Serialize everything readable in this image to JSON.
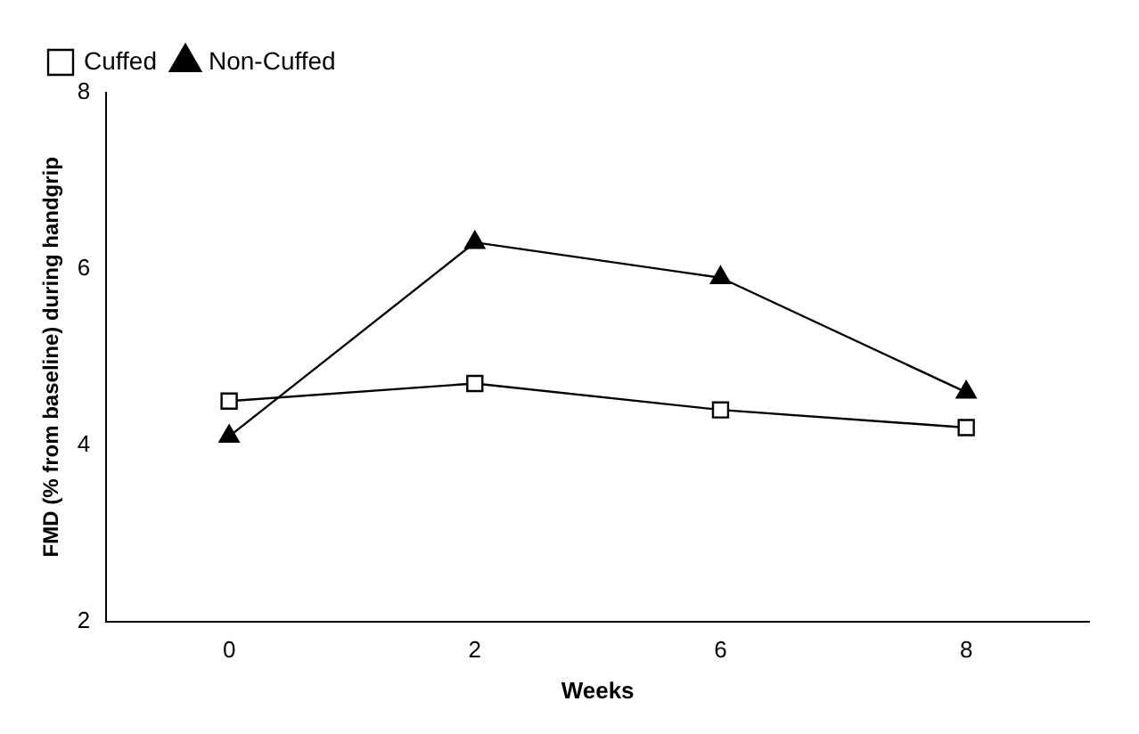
{
  "chart_data": {
    "type": "line",
    "xlabel": "Weeks",
    "ylabel": "FMD (% from baseline) during handgrip",
    "categories": [
      "0",
      "2",
      "6",
      "8"
    ],
    "series": [
      {
        "name": "Cuffed",
        "color": "#000000",
        "marker": "square",
        "values": [
          4.5,
          4.7,
          4.4,
          4.2
        ]
      },
      {
        "name": "Non-Cuffed",
        "color": "#000000",
        "marker": "triangle",
        "values": [
          4.1,
          6.3,
          5.9,
          4.6
        ]
      }
    ],
    "ylim": [
      2,
      8
    ],
    "yticks": [
      2,
      4,
      6,
      8
    ],
    "grid": false,
    "legend": "top left",
    "line_style": "solid"
  }
}
